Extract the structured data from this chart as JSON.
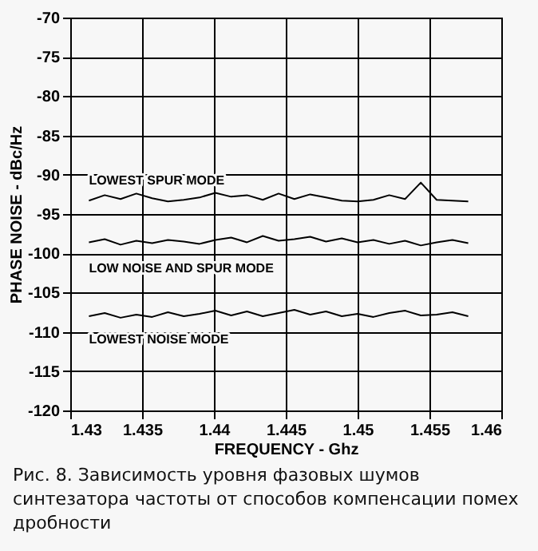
{
  "chart_data": {
    "type": "line",
    "xlabel": "FREQUENCY - Ghz",
    "ylabel": "PHASE NOISE - dBc/Hz",
    "x": [
      1.4313,
      1.4324,
      1.4335,
      1.4346,
      1.4357,
      1.4368,
      1.4379,
      1.439,
      1.4401,
      1.4412,
      1.4423,
      1.4434,
      1.4445,
      1.4456,
      1.4467,
      1.4478,
      1.4489,
      1.45,
      1.4511,
      1.4522,
      1.4533,
      1.4544,
      1.4555,
      1.4566,
      1.4577
    ],
    "series": [
      {
        "name": "LOWEST SPUR MODE",
        "color": "#000000",
        "values": [
          -93.3,
          -92.6,
          -93.1,
          -92.4,
          -93.0,
          -93.4,
          -93.2,
          -92.9,
          -92.3,
          -92.8,
          -92.6,
          -93.2,
          -92.4,
          -93.1,
          -92.5,
          -92.9,
          -93.3,
          -93.4,
          -93.2,
          -92.6,
          -93.1,
          -91.0,
          -93.2,
          -93.3,
          -93.4
        ]
      },
      {
        "name": "LOW NOISE AND SPUR MODE",
        "color": "#000000",
        "values": [
          -98.6,
          -98.2,
          -98.9,
          -98.4,
          -98.7,
          -98.3,
          -98.5,
          -98.8,
          -98.3,
          -98.0,
          -98.6,
          -97.8,
          -98.4,
          -98.2,
          -97.9,
          -98.5,
          -98.1,
          -98.6,
          -98.3,
          -98.8,
          -98.4,
          -99.0,
          -98.6,
          -98.3,
          -98.7
        ]
      },
      {
        "name": "LOWEST NOISE MODE",
        "color": "#000000",
        "values": [
          -108.0,
          -107.6,
          -108.2,
          -107.8,
          -108.1,
          -107.5,
          -108.0,
          -107.7,
          -107.3,
          -107.9,
          -107.4,
          -108.0,
          -107.6,
          -107.2,
          -107.8,
          -107.4,
          -108.0,
          -107.7,
          -108.1,
          -107.6,
          -107.3,
          -107.9,
          -107.8,
          -107.5,
          -108.0
        ]
      }
    ],
    "xlim": [
      1.43,
      1.46
    ],
    "xticks": [
      1.43,
      1.435,
      1.44,
      1.445,
      1.45,
      1.455,
      1.46
    ],
    "ylim": [
      -120,
      -70
    ],
    "yticks": [
      -120,
      -115,
      -110,
      -105,
      -100,
      -95,
      -90,
      -85,
      -80,
      -75,
      -70
    ],
    "grid": true,
    "legend": false,
    "marker": "none",
    "line_style": "solid",
    "annotations": [
      "Рис. 8. Зависимость уровня фазовых шумов синтезатора частоты от способов компенсации помех дробности"
    ]
  }
}
